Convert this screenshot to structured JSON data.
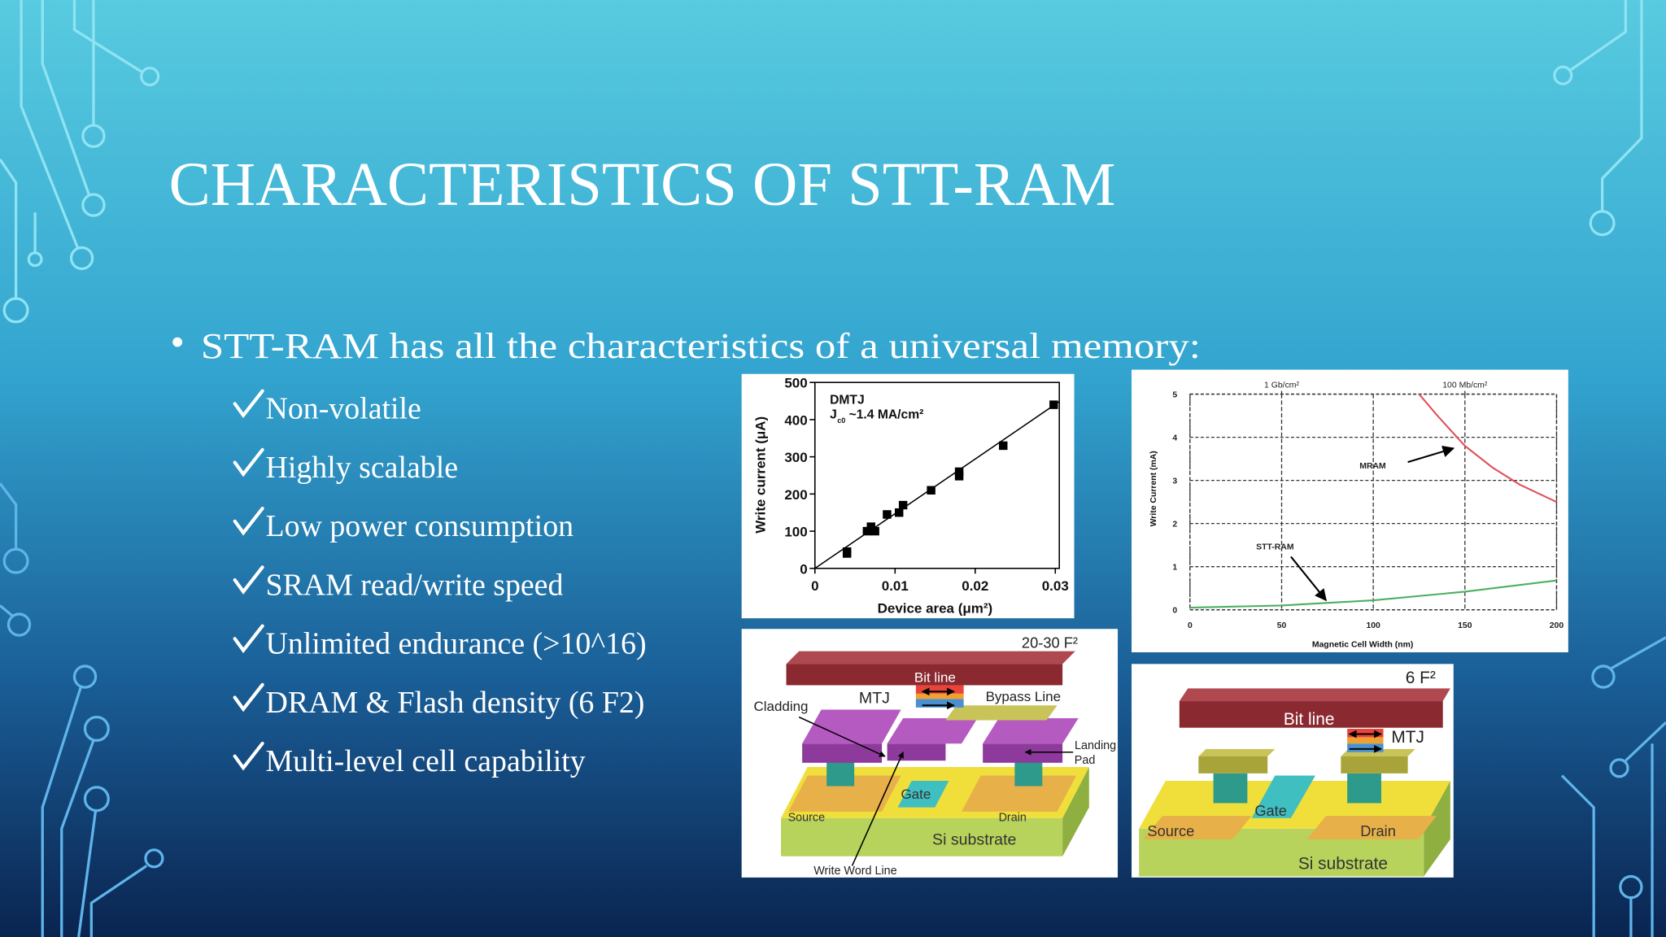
{
  "title": "CHARACTERISTICS OF STT-RAM",
  "bullet": "STT-RAM has all the characteristics of a universal memory:",
  "checks": [
    "Non-volatile",
    "Highly scalable",
    "Low power consumption",
    "SRAM read/write speed",
    "Unlimited endurance (>10^16)",
    "DRAM & Flash density (6 F2)",
    "Multi-level cell capability"
  ],
  "chart_data": [
    {
      "type": "scatter",
      "annotation_title": "DMTJ",
      "annotation_symbol": "J",
      "annotation_subscript": "c0",
      "annotation_value": "~1.4 MA/cm²",
      "x_label": "Device area (μm²)",
      "y_label": "Write current (μA)",
      "x": [
        0.004,
        0.004,
        0.0065,
        0.007,
        0.0075,
        0.009,
        0.0105,
        0.011,
        0.0145,
        0.018,
        0.018,
        0.0235,
        0.0298
      ],
      "values": [
        40,
        45,
        100,
        112,
        100,
        145,
        150,
        170,
        210,
        260,
        248,
        330,
        440
      ],
      "color": "#000000",
      "xlim": [
        0,
        0.0305
      ],
      "ylim": [
        0,
        500
      ],
      "xticks": [
        0,
        0.01,
        0.02,
        0.03
      ],
      "yticks": [
        0,
        100,
        200,
        300,
        400,
        500
      ]
    },
    {
      "type": "line",
      "x_label": "Magnetic Cell Width (nm)",
      "y_label": "Write Current (mA)",
      "series": [
        {
          "name": "MRAM",
          "color": "#e0505a",
          "x": [
            125,
            135,
            150,
            165,
            180,
            200
          ],
          "values": [
            5,
            4.5,
            3.8,
            3.3,
            2.9,
            2.5
          ]
        },
        {
          "name": "STT-RAM",
          "color": "#4caf60",
          "x": [
            0,
            50,
            100,
            150,
            200
          ],
          "values": [
            0.05,
            0.1,
            0.22,
            0.42,
            0.68
          ]
        }
      ],
      "xlim": [
        0,
        200
      ],
      "ylim": [
        0,
        5
      ],
      "xticks": [
        0,
        50,
        100,
        150,
        200
      ],
      "yticks": [
        0,
        1,
        2,
        3,
        4,
        5
      ],
      "x2ticks": [
        {
          "value": 50,
          "label": "1 Gb/cm²"
        },
        {
          "value": 150,
          "label": "100 Mb/cm²"
        }
      ],
      "grid": true
    }
  ],
  "diagrams": [
    {
      "area": "20-30 F²",
      "bit_line": "Bit line",
      "mtj": "MTJ",
      "bypass_line": "Bypass Line",
      "cladding": "Cladding",
      "landing_pad": [
        "Landing",
        "Pad"
      ],
      "gate": "Gate",
      "source": "Source",
      "drain": "Drain",
      "substrate": "Si substrate",
      "write_word_line": "Write Word Line"
    },
    {
      "area": "6 F²",
      "bit_line": "Bit line",
      "mtj": "MTJ",
      "gate": "Gate",
      "source": "Source",
      "drain": "Drain",
      "substrate": "Si substrate"
    }
  ]
}
